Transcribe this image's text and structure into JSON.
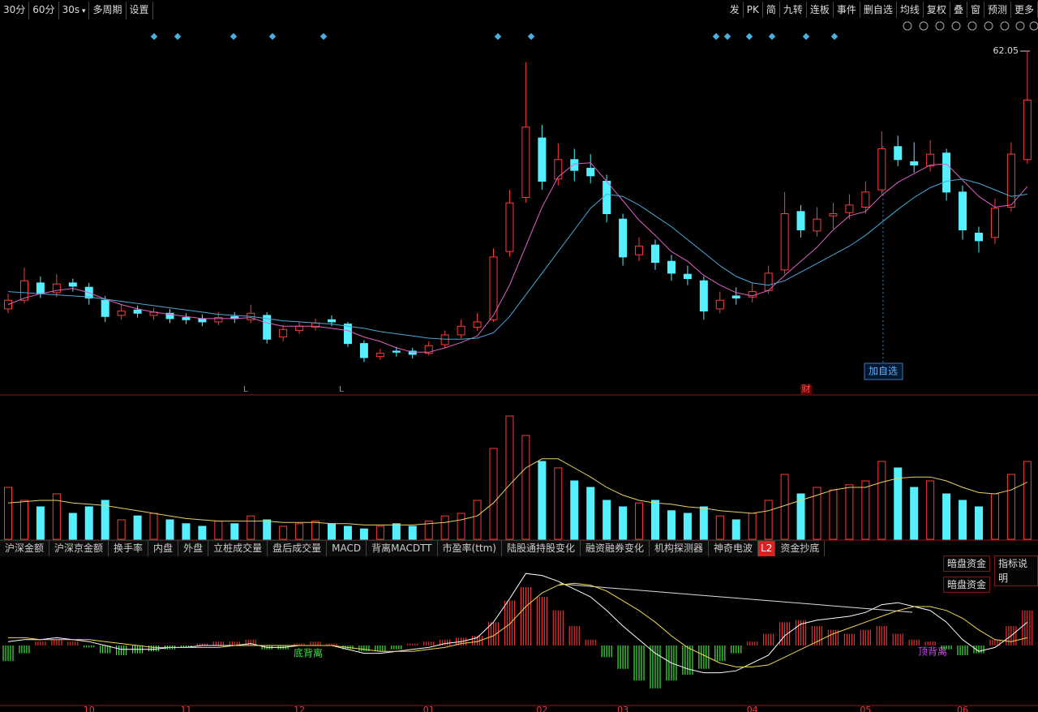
{
  "toolbar": {
    "left": [
      "30分",
      "60分",
      "30s",
      "多周期",
      "设置"
    ],
    "right": [
      "发",
      "PK",
      "简",
      "九转",
      "连板",
      "事件",
      "删自选",
      "均线",
      "复权",
      "叠",
      "窗",
      "预测",
      "更多"
    ]
  },
  "markers": {
    "add_watchlist": "加自选",
    "finance": "财"
  },
  "tabs": [
    "沪深金额",
    "沪深京金额",
    "换手率",
    "内盘",
    "外盘",
    "立桩成交量",
    "盘后成交量",
    "MACD",
    "背离MACDTT",
    "市盈率(ttm)",
    "陆股通持股变化",
    "融资融券变化",
    "机构探测器",
    "神奇电波",
    "L2",
    "资金抄底"
  ],
  "buttons": [
    "暗盘资金",
    "指标说明",
    "暗盘资金"
  ],
  "chart_data": [
    {
      "type": "candlestick",
      "up_color": "#ff3b3b",
      "down_color": "#54f0ff",
      "ylim": [
        30.4,
        64.5
      ],
      "open": [
        38.2,
        39.0,
        40.6,
        39.7,
        40.6,
        40.2,
        39.0,
        37.6,
        38.1,
        37.6,
        37.8,
        37.4,
        37.3,
        37.0,
        37.5,
        37.2,
        37.6,
        35.6,
        36.2,
        36.5,
        37.2,
        36.8,
        35.0,
        33.8,
        34.3,
        34.3,
        34.1,
        34.9,
        35.8,
        36.5,
        37.2,
        43.5,
        48.5,
        54.0,
        50.2,
        52.0,
        51.2,
        50.0,
        46.5,
        43.2,
        44.1,
        42.6,
        41.4,
        40.8,
        38.2,
        39.4,
        39.3,
        39.9,
        41.8,
        47.2,
        45.4,
        46.8,
        47.1,
        47.6,
        49.2,
        53.2,
        51.8,
        51.4,
        52.6,
        49.0,
        45.2,
        44.8,
        47.6,
        52.0
      ],
      "high": [
        39.6,
        42.0,
        41.2,
        41.4,
        41.0,
        40.6,
        39.4,
        38.6,
        38.5,
        38.3,
        38.2,
        37.8,
        37.7,
        37.9,
        37.9,
        38.6,
        37.9,
        36.7,
        37.0,
        37.3,
        37.6,
        37.0,
        35.3,
        34.5,
        34.7,
        34.6,
        35.2,
        36.2,
        37.2,
        37.8,
        43.8,
        49.2,
        61.0,
        55.2,
        53.5,
        53.0,
        52.5,
        50.6,
        47.0,
        44.8,
        44.6,
        43.2,
        42.2,
        41.2,
        39.8,
        40.2,
        40.6,
        42.2,
        49.0,
        47.8,
        47.6,
        48.0,
        48.8,
        50.0,
        54.6,
        54.2,
        53.6,
        53.8,
        53.0,
        49.6,
        45.8,
        48.4,
        53.6,
        62.05
      ],
      "low": [
        37.8,
        38.7,
        39.2,
        39.3,
        39.8,
        38.6,
        37.0,
        37.2,
        37.4,
        37.2,
        36.9,
        36.8,
        36.6,
        36.7,
        36.9,
        36.9,
        35.0,
        35.2,
        35.9,
        36.2,
        36.6,
        34.7,
        33.3,
        33.5,
        33.8,
        33.6,
        33.9,
        34.6,
        35.5,
        36.2,
        37.0,
        43.0,
        48.0,
        49.2,
        49.6,
        50.0,
        49.8,
        46.2,
        42.2,
        42.6,
        41.8,
        40.8,
        40.4,
        37.2,
        37.8,
        38.6,
        38.8,
        39.6,
        41.4,
        44.8,
        44.9,
        45.6,
        46.5,
        47.0,
        48.8,
        51.4,
        50.8,
        50.9,
        48.2,
        44.6,
        43.4,
        44.2,
        47.2,
        51.6
      ],
      "close": [
        39.0,
        40.8,
        39.6,
        40.5,
        40.3,
        39.2,
        37.5,
        38.0,
        37.8,
        37.9,
        37.3,
        37.2,
        37.0,
        37.4,
        37.3,
        37.8,
        35.4,
        36.3,
        36.6,
        36.9,
        37.0,
        35.0,
        33.7,
        34.1,
        34.2,
        34.0,
        34.8,
        35.8,
        36.6,
        37.0,
        43.0,
        48.0,
        55.0,
        50.0,
        52.0,
        51.0,
        50.5,
        47.0,
        43.0,
        44.0,
        42.5,
        41.5,
        41.0,
        38.0,
        39.0,
        39.2,
        39.8,
        41.5,
        47.0,
        45.5,
        46.5,
        47.0,
        47.8,
        49.0,
        53.0,
        52.0,
        51.5,
        52.5,
        49.0,
        45.5,
        44.5,
        47.5,
        52.5,
        57.5
      ],
      "lines": [
        {
          "color": "#e060c0",
          "values": [
            38.6,
            39.2,
            39.6,
            39.9,
            40.1,
            39.7,
            39.1,
            38.6,
            38.2,
            37.9,
            37.7,
            37.5,
            37.3,
            37.3,
            37.3,
            37.4,
            36.9,
            36.6,
            36.6,
            36.6,
            36.4,
            36.2,
            35.6,
            35.2,
            34.6,
            34.2,
            34.2,
            34.6,
            35.1,
            35.7,
            37.6,
            40.4,
            44.0,
            47.6,
            50.4,
            51.6,
            51.7,
            50.0,
            48.2,
            46.4,
            45.0,
            43.5,
            42.6,
            41.3,
            40.4,
            39.7,
            39.4,
            39.9,
            41.3,
            42.6,
            43.9,
            45.5,
            46.8,
            47.2,
            48.7,
            49.9,
            50.7,
            51.5,
            51.6,
            50.1,
            48.6,
            47.6,
            47.8,
            49.5
          ]
        },
        {
          "color": "#4aa8d8",
          "values": [
            39.8,
            39.7,
            39.6,
            39.5,
            39.4,
            39.3,
            39.1,
            38.9,
            38.7,
            38.5,
            38.3,
            38.1,
            37.9,
            37.7,
            37.6,
            37.5,
            37.3,
            37.1,
            37.0,
            36.9,
            36.8,
            36.6,
            36.4,
            36.1,
            35.9,
            35.7,
            35.5,
            35.4,
            35.4,
            35.5,
            36.0,
            37.5,
            39.5,
            41.5,
            43.5,
            45.5,
            47.5,
            48.8,
            48.6,
            47.8,
            46.8,
            45.8,
            44.6,
            43.4,
            42.2,
            41.2,
            40.6,
            40.4,
            40.8,
            41.6,
            42.4,
            43.2,
            44.0,
            45.0,
            46.2,
            47.4,
            48.5,
            49.4,
            50.0,
            50.2,
            49.8,
            49.2,
            48.6,
            48.8
          ]
        }
      ]
    },
    {
      "type": "volume",
      "ylim": [
        0,
        100
      ],
      "values": [
        40,
        30,
        25,
        35,
        20,
        25,
        30,
        15,
        18,
        20,
        15,
        12,
        10,
        14,
        12,
        18,
        15,
        10,
        12,
        14,
        12,
        10,
        8,
        10,
        12,
        10,
        14,
        18,
        20,
        30,
        70,
        95,
        80,
        60,
        55,
        45,
        40,
        30,
        25,
        28,
        30,
        22,
        20,
        25,
        18,
        15,
        20,
        30,
        50,
        35,
        40,
        38,
        42,
        45,
        60,
        55,
        40,
        45,
        35,
        30,
        25,
        35,
        50,
        60
      ],
      "lines": [
        {
          "color": "#e8d060",
          "values": [
            28,
            29,
            30,
            30,
            28,
            27,
            26,
            24,
            22,
            20,
            18,
            16,
            15,
            14,
            14,
            14,
            14,
            13,
            13,
            13,
            12,
            12,
            11,
            11,
            11,
            11,
            12,
            13,
            15,
            18,
            28,
            42,
            55,
            62,
            62,
            55,
            48,
            40,
            34,
            30,
            28,
            27,
            25,
            24,
            22,
            21,
            20,
            22,
            26,
            30,
            34,
            38,
            40,
            40,
            44,
            47,
            48,
            48,
            45,
            40,
            36,
            35,
            38,
            44
          ]
        }
      ]
    },
    {
      "type": "macd",
      "ylim": [
        -3,
        4
      ],
      "up_color": "#e83030",
      "down_color": "#3ee83e",
      "categories": [
        null,
        null,
        null,
        null,
        null,
        "10",
        null,
        null,
        null,
        null,
        null,
        "11",
        null,
        null,
        null,
        null,
        null,
        null,
        "12",
        null,
        null,
        null,
        null,
        null,
        null,
        null,
        "01",
        null,
        null,
        null,
        null,
        null,
        null,
        "02",
        null,
        null,
        null,
        null,
        "03",
        null,
        null,
        null,
        null,
        null,
        null,
        null,
        "04",
        null,
        null,
        null,
        null,
        null,
        null,
        "05",
        null,
        null,
        null,
        null,
        null,
        "06",
        null,
        null,
        null,
        null
      ],
      "histogram": [
        -0.8,
        -0.4,
        0.2,
        0.3,
        0.2,
        -0.1,
        -0.4,
        -0.5,
        -0.4,
        -0.3,
        -0.2,
        -0.1,
        0.1,
        0.2,
        0.2,
        0.3,
        -0.2,
        -0.2,
        0.1,
        0.2,
        0.1,
        -0.2,
        -0.3,
        -0.3,
        -0.2,
        0.1,
        0.2,
        0.3,
        0.4,
        0.5,
        1.2,
        2.3,
        3.0,
        2.5,
        1.8,
        1.0,
        0.3,
        -0.6,
        -1.2,
        -1.8,
        -2.2,
        -1.8,
        -1.5,
        -1.2,
        -0.8,
        -0.4,
        0.2,
        0.6,
        1.2,
        1.3,
        1.0,
        0.8,
        0.6,
        0.8,
        1.0,
        0.6,
        0.3,
        0.2,
        -0.2,
        -0.5,
        -0.4,
        0.3,
        1.0,
        1.8
      ],
      "lines": [
        {
          "color": "#ffffff",
          "values": [
            0.2,
            0.3,
            0.3,
            0.4,
            0.3,
            0.2,
            0.0,
            -0.2,
            -0.2,
            -0.2,
            -0.1,
            -0.1,
            0,
            0,
            0,
            0.1,
            -0.1,
            -0.1,
            0,
            0,
            0,
            -0.2,
            -0.4,
            -0.4,
            -0.3,
            -0.2,
            -0.1,
            0.1,
            0.2,
            0.4,
            1.2,
            2.4,
            3.7,
            3.6,
            3.3,
            2.9,
            2.5,
            1.8,
            1.0,
            0.3,
            -0.4,
            -0.9,
            -1.2,
            -1.4,
            -1.4,
            -1.3,
            -0.9,
            -0.5,
            0.5,
            1.1,
            1.3,
            1.4,
            1.5,
            1.7,
            2.1,
            2.2,
            2.0,
            1.8,
            1.2,
            0.3,
            -0.3,
            -0.1,
            0.5,
            1.2
          ]
        },
        {
          "color": "#f0d850",
          "values": [
            0.4,
            0.4,
            0.3,
            0.3,
            0.3,
            0.3,
            0.2,
            0.1,
            0.0,
            -0.1,
            -0.1,
            -0.1,
            -0.1,
            -0.1,
            0,
            0,
            0,
            0,
            0,
            0,
            0,
            -0.1,
            -0.2,
            -0.3,
            -0.3,
            -0.3,
            -0.2,
            -0.1,
            0.1,
            0.2,
            0.5,
            1.1,
            2.0,
            2.7,
            3.1,
            3.2,
            3.1,
            2.8,
            2.3,
            1.8,
            1.2,
            0.5,
            -0.1,
            -0.5,
            -0.9,
            -1.1,
            -1.1,
            -1.0,
            -0.6,
            -0.2,
            0.2,
            0.6,
            0.9,
            1.2,
            1.5,
            1.8,
            2.0,
            2.0,
            1.8,
            1.4,
            0.8,
            0.3,
            0.2,
            0.4
          ]
        }
      ],
      "annotations": [
        "底背离",
        "顶背离"
      ]
    }
  ]
}
